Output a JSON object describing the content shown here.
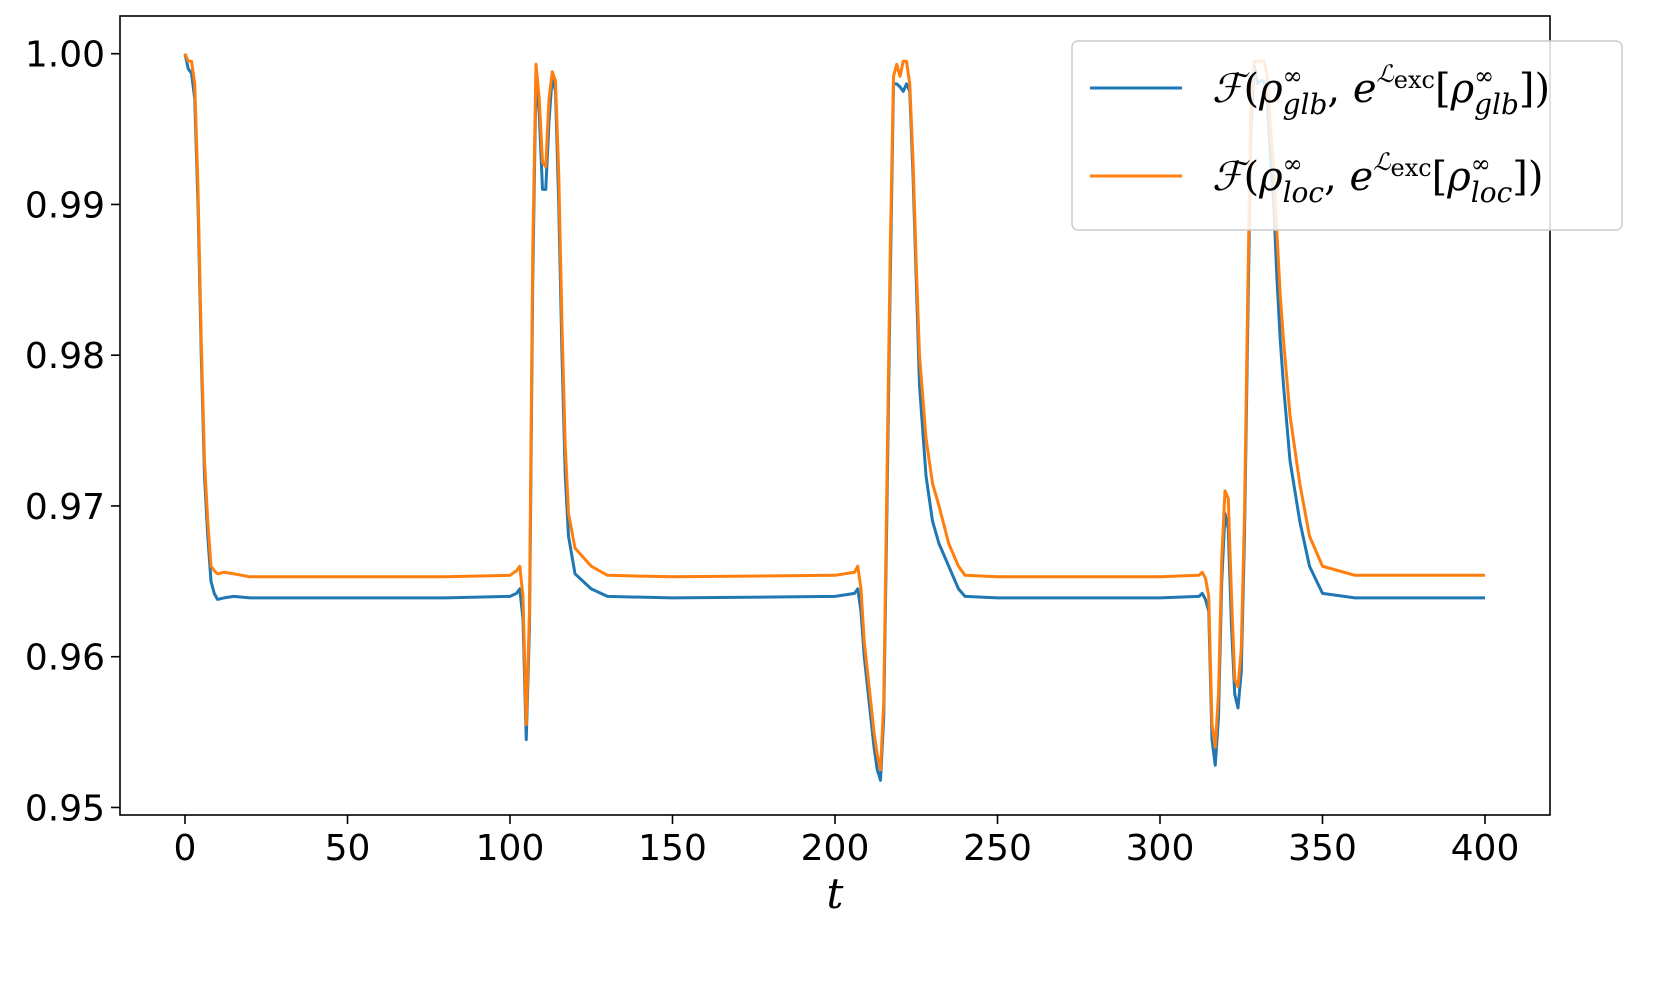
{
  "chart_data": {
    "type": "line",
    "title": "",
    "xlabel": "t",
    "ylabel": "",
    "xlim": [
      -20,
      420
    ],
    "ylim": [
      0.9495,
      1.0025
    ],
    "xticks": [
      0,
      50,
      100,
      150,
      200,
      250,
      300,
      350,
      400
    ],
    "xtick_labels": [
      "0",
      "50",
      "100",
      "150",
      "200",
      "250",
      "300",
      "350",
      "400"
    ],
    "yticks": [
      0.95,
      0.96,
      0.97,
      0.98,
      0.99,
      1.0
    ],
    "ytick_labels": [
      "0.95",
      "0.96",
      "0.97",
      "0.98",
      "0.99",
      "1.00"
    ],
    "grid": false,
    "legend_position": "top-right",
    "series": [
      {
        "name": "glb",
        "legend": {
          "script": "ℱ",
          "open": "(",
          "rho1": "ρ",
          "sup1": "∞",
          "sub1": "glb",
          "comma": ", ",
          "e": "e",
          "supL": "ℒ",
          "supLsub": "exc",
          "lb": "[",
          "rho2": "ρ",
          "sup2": "∞",
          "sub2": "glb",
          "close": "])"
        },
        "color": "#1f77b4",
        "x": [
          0,
          1,
          2,
          3,
          4,
          5,
          6,
          7,
          8,
          9,
          10,
          12,
          15,
          20,
          50,
          80,
          100,
          102,
          103,
          104,
          105,
          106,
          107,
          108,
          109,
          110,
          111,
          112,
          113,
          114,
          115,
          116,
          117,
          118,
          120,
          125,
          130,
          150,
          200,
          206,
          207,
          208,
          209,
          210,
          211,
          212,
          213,
          214,
          215,
          216,
          217,
          218,
          219,
          220,
          221,
          222,
          223,
          224,
          225,
          226,
          228,
          230,
          232,
          235,
          238,
          240,
          250,
          300,
          312,
          313,
          314,
          315,
          316,
          317,
          318,
          319,
          320,
          321,
          322,
          323,
          324,
          325,
          326,
          327,
          328,
          329,
          330,
          331,
          332,
          333,
          334,
          335,
          336,
          337,
          338,
          340,
          343,
          346,
          350,
          360,
          400
        ],
        "values": [
          1.0,
          0.999,
          0.9987,
          0.997,
          0.99,
          0.98,
          0.972,
          0.968,
          0.965,
          0.9642,
          0.9638,
          0.9639,
          0.964,
          0.9639,
          0.9639,
          0.9639,
          0.964,
          0.9642,
          0.9645,
          0.9625,
          0.9545,
          0.962,
          0.985,
          0.9985,
          0.996,
          0.991,
          0.991,
          0.9955,
          0.9985,
          0.9975,
          0.99,
          0.98,
          0.972,
          0.968,
          0.9655,
          0.9645,
          0.964,
          0.9639,
          0.964,
          0.9642,
          0.9645,
          0.963,
          0.96,
          0.958,
          0.956,
          0.954,
          0.9525,
          0.9518,
          0.956,
          0.97,
          0.985,
          0.998,
          0.998,
          0.9978,
          0.9975,
          0.998,
          0.9975,
          0.992,
          0.985,
          0.978,
          0.972,
          0.969,
          0.9675,
          0.966,
          0.9645,
          0.964,
          0.9639,
          0.9639,
          0.964,
          0.9642,
          0.9638,
          0.963,
          0.9545,
          0.9528,
          0.956,
          0.965,
          0.9695,
          0.9685,
          0.962,
          0.9575,
          0.9566,
          0.959,
          0.968,
          0.982,
          0.995,
          0.9992,
          0.998,
          0.9982,
          0.9982,
          0.997,
          0.993,
          0.99,
          0.985,
          0.981,
          0.978,
          0.973,
          0.969,
          0.966,
          0.9642,
          0.9639,
          0.9639
        ]
      },
      {
        "name": "loc",
        "legend": {
          "script": "ℱ",
          "open": "(",
          "rho1": "ρ",
          "sup1": "∞",
          "sub1": "loc",
          "comma": ", ",
          "e": "e",
          "supL": "ℒ",
          "supLsub": "exc",
          "lb": "[",
          "rho2": "ρ",
          "sup2": "∞",
          "sub2": "loc",
          "close": "])"
        },
        "color": "#ff7f0e",
        "x": [
          0,
          1,
          2,
          3,
          4,
          5,
          6,
          7,
          8,
          9,
          10,
          12,
          15,
          20,
          50,
          80,
          100,
          102,
          103,
          104,
          105,
          106,
          107,
          108,
          109,
          110,
          111,
          112,
          113,
          114,
          115,
          116,
          117,
          118,
          120,
          125,
          130,
          150,
          200,
          206,
          207,
          208,
          209,
          210,
          211,
          212,
          213,
          214,
          215,
          216,
          217,
          218,
          219,
          220,
          221,
          222,
          223,
          224,
          225,
          226,
          228,
          230,
          232,
          235,
          238,
          240,
          250,
          300,
          312,
          313,
          314,
          315,
          316,
          317,
          318,
          319,
          320,
          321,
          322,
          323,
          324,
          325,
          326,
          327,
          328,
          329,
          330,
          331,
          332,
          333,
          334,
          335,
          336,
          337,
          338,
          340,
          343,
          346,
          350,
          360,
          400
        ],
        "values": [
          1.0,
          0.9995,
          0.9995,
          0.998,
          0.991,
          0.981,
          0.973,
          0.969,
          0.966,
          0.9657,
          0.9655,
          0.9656,
          0.9655,
          0.9653,
          0.9653,
          0.9653,
          0.9654,
          0.9657,
          0.966,
          0.964,
          0.9555,
          0.963,
          0.987,
          0.9993,
          0.997,
          0.9928,
          0.9925,
          0.997,
          0.9988,
          0.9982,
          0.992,
          0.982,
          0.974,
          0.9695,
          0.9672,
          0.966,
          0.9654,
          0.9653,
          0.9654,
          0.9656,
          0.966,
          0.9645,
          0.961,
          0.959,
          0.957,
          0.955,
          0.9535,
          0.9525,
          0.957,
          0.972,
          0.987,
          0.9985,
          0.9993,
          0.9985,
          0.9995,
          0.9995,
          0.998,
          0.993,
          0.986,
          0.98,
          0.9745,
          0.9715,
          0.97,
          0.9675,
          0.966,
          0.9654,
          0.9653,
          0.9653,
          0.9654,
          0.9656,
          0.9652,
          0.964,
          0.9555,
          0.954,
          0.9575,
          0.9665,
          0.971,
          0.9705,
          0.964,
          0.9585,
          0.958,
          0.9605,
          0.9695,
          0.984,
          0.997,
          0.9995,
          0.9995,
          0.9995,
          0.9995,
          0.9985,
          0.995,
          0.9925,
          0.988,
          0.984,
          0.981,
          0.976,
          0.9715,
          0.968,
          0.966,
          0.9654,
          0.9654
        ]
      }
    ]
  }
}
